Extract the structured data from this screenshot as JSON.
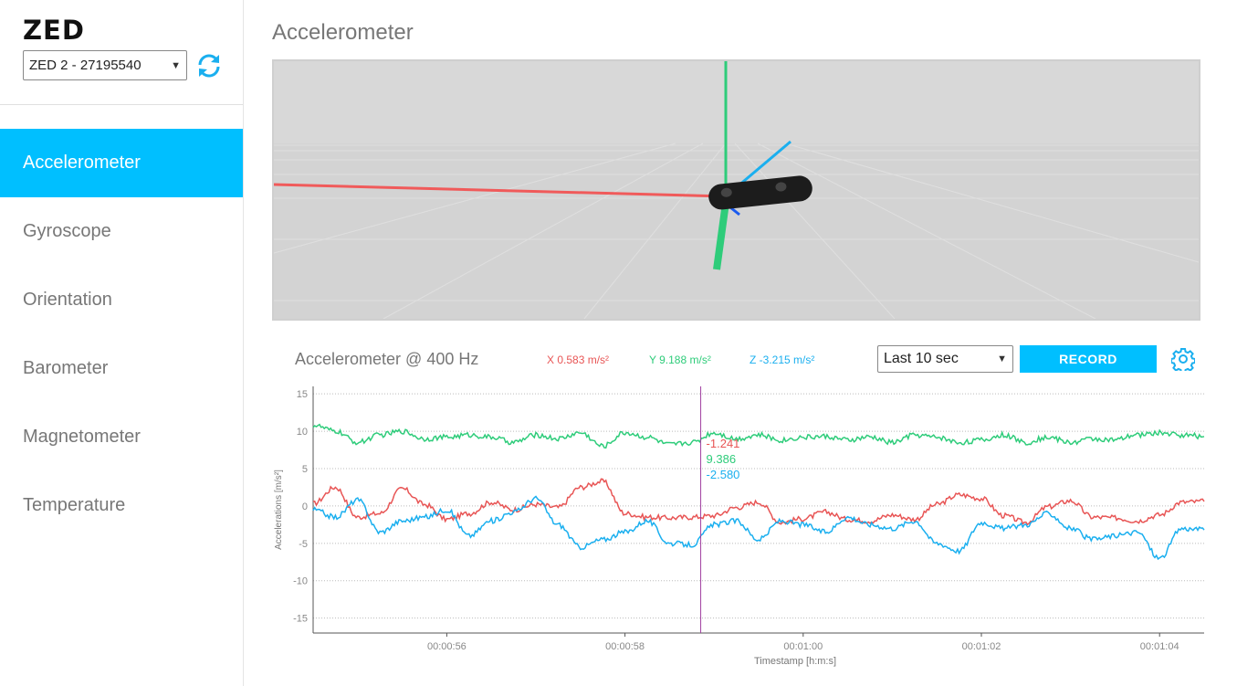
{
  "sidebar": {
    "logo": "ZED",
    "device": "ZED 2 - 27195540",
    "items": [
      {
        "label": "Accelerometer",
        "active": true
      },
      {
        "label": "Gyroscope",
        "active": false
      },
      {
        "label": "Orientation",
        "active": false
      },
      {
        "label": "Barometer",
        "active": false
      },
      {
        "label": "Magnetometer",
        "active": false
      },
      {
        "label": "Temperature",
        "active": false
      }
    ]
  },
  "main": {
    "title": "Accelerometer",
    "chart_header": "Accelerometer @  400 Hz",
    "readouts": {
      "x": "X 0.583 m/s²",
      "y": "Y 9.188 m/s²",
      "z": "Z -3.215 m/s²"
    },
    "range_select": "Last 10 sec",
    "record_label": "RECORD"
  },
  "colors": {
    "accent": "#00bfff",
    "x": "#e85555",
    "y": "#2ecc7a",
    "z": "#1aafef",
    "cursor": "#a040a0"
  },
  "chart_data": {
    "type": "line",
    "xlabel": "Timestamp [h:m:s]",
    "ylabel": "Accelerations [m/s²]",
    "ylim": [
      -17,
      16
    ],
    "yticks": [
      15,
      10,
      5,
      0,
      -5,
      -10,
      -15
    ],
    "xlim": [
      54.5,
      64.5
    ],
    "xticks": [
      {
        "t": 56,
        "label": "00:00:56"
      },
      {
        "t": 58,
        "label": "00:00:58"
      },
      {
        "t": 60,
        "label": "00:01:00"
      },
      {
        "t": 62,
        "label": "00:01:02"
      },
      {
        "t": 64,
        "label": "00:01:04"
      }
    ],
    "grid": true,
    "cursor": {
      "t": 58.85,
      "values": [
        "-1.241",
        "9.386",
        "-2.580"
      ]
    },
    "x": [
      54.5,
      54.75,
      55.0,
      55.25,
      55.5,
      55.75,
      56.0,
      56.25,
      56.5,
      56.75,
      57.0,
      57.25,
      57.5,
      57.75,
      58.0,
      58.25,
      58.5,
      58.75,
      59.0,
      59.25,
      59.5,
      59.75,
      60.0,
      60.25,
      60.5,
      60.75,
      61.0,
      61.25,
      61.5,
      61.75,
      62.0,
      62.25,
      62.5,
      62.75,
      63.0,
      63.25,
      63.5,
      63.75,
      64.0,
      64.25,
      64.5
    ],
    "series": [
      {
        "name": "X",
        "values": [
          0.3,
          2.5,
          -1.5,
          -1.0,
          2.3,
          0.2,
          -1.8,
          -1.0,
          0.5,
          -0.5,
          0.2,
          -0.2,
          2.5,
          3.3,
          -1.0,
          -1.5,
          -1.6,
          -1.5,
          -1.3,
          -0.2,
          0.5,
          -2.2,
          -1.7,
          -0.8,
          -1.8,
          -2.0,
          -1.2,
          -1.8,
          0.2,
          1.5,
          1.0,
          -1.3,
          -2.2,
          -0.1,
          0.7,
          -1.5,
          -1.6,
          -2.0,
          -1.2,
          0.5,
          0.6
        ]
      },
      {
        "name": "Y",
        "values": [
          10.8,
          10.0,
          8.5,
          9.5,
          10.0,
          9.0,
          9.2,
          9.5,
          9.2,
          8.5,
          9.5,
          9.0,
          9.8,
          8.0,
          9.8,
          9.2,
          8.2,
          8.5,
          9.8,
          9.0,
          9.5,
          8.8,
          9.2,
          9.3,
          8.8,
          9.2,
          8.5,
          9.5,
          9.2,
          8.5,
          8.8,
          9.5,
          8.5,
          9.2,
          8.5,
          9.0,
          8.8,
          9.5,
          9.8,
          9.5,
          9.3
        ]
      },
      {
        "name": "Z",
        "values": [
          -0.5,
          -1.5,
          0.8,
          -3.5,
          -2.0,
          -1.5,
          -0.5,
          -4.0,
          -2.0,
          -0.8,
          1.0,
          -2.5,
          -5.5,
          -4.5,
          -3.5,
          -2.0,
          -5.0,
          -5.2,
          -2.5,
          -2.0,
          -4.5,
          -2.0,
          -2.5,
          -3.5,
          -1.5,
          -2.5,
          -3.0,
          -2.0,
          -5.0,
          -6.0,
          -2.2,
          -3.0,
          -2.5,
          -1.0,
          -3.0,
          -4.5,
          -4.0,
          -3.5,
          -7.0,
          -3.0,
          -3.2
        ]
      }
    ]
  }
}
